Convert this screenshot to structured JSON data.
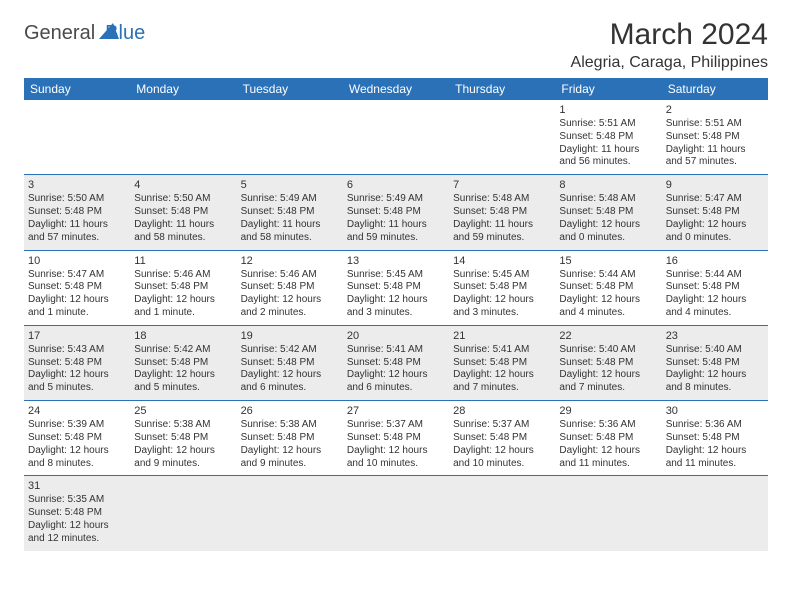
{
  "logo": {
    "text1": "General",
    "text2": "Blue"
  },
  "header": {
    "month": "March 2024",
    "location": "Alegria, Caraga, Philippines"
  },
  "dayNames": [
    "Sunday",
    "Monday",
    "Tuesday",
    "Wednesday",
    "Thursday",
    "Friday",
    "Saturday"
  ],
  "colors": {
    "headerBg": "#2a71b8",
    "headerText": "#ffffff",
    "altRowBg": "#ececec",
    "rowBorder": "#2a71b8",
    "textColor": "#333333",
    "logoGray": "#4a4a4a",
    "logoBlue": "#2a71b8"
  },
  "grid": {
    "startWeekday": 5,
    "daysInMonth": 31
  },
  "days": {
    "1": {
      "sunrise": "Sunrise: 5:51 AM",
      "sunset": "Sunset: 5:48 PM",
      "daylight": "Daylight: 11 hours and 56 minutes."
    },
    "2": {
      "sunrise": "Sunrise: 5:51 AM",
      "sunset": "Sunset: 5:48 PM",
      "daylight": "Daylight: 11 hours and 57 minutes."
    },
    "3": {
      "sunrise": "Sunrise: 5:50 AM",
      "sunset": "Sunset: 5:48 PM",
      "daylight": "Daylight: 11 hours and 57 minutes."
    },
    "4": {
      "sunrise": "Sunrise: 5:50 AM",
      "sunset": "Sunset: 5:48 PM",
      "daylight": "Daylight: 11 hours and 58 minutes."
    },
    "5": {
      "sunrise": "Sunrise: 5:49 AM",
      "sunset": "Sunset: 5:48 PM",
      "daylight": "Daylight: 11 hours and 58 minutes."
    },
    "6": {
      "sunrise": "Sunrise: 5:49 AM",
      "sunset": "Sunset: 5:48 PM",
      "daylight": "Daylight: 11 hours and 59 minutes."
    },
    "7": {
      "sunrise": "Sunrise: 5:48 AM",
      "sunset": "Sunset: 5:48 PM",
      "daylight": "Daylight: 11 hours and 59 minutes."
    },
    "8": {
      "sunrise": "Sunrise: 5:48 AM",
      "sunset": "Sunset: 5:48 PM",
      "daylight": "Daylight: 12 hours and 0 minutes."
    },
    "9": {
      "sunrise": "Sunrise: 5:47 AM",
      "sunset": "Sunset: 5:48 PM",
      "daylight": "Daylight: 12 hours and 0 minutes."
    },
    "10": {
      "sunrise": "Sunrise: 5:47 AM",
      "sunset": "Sunset: 5:48 PM",
      "daylight": "Daylight: 12 hours and 1 minute."
    },
    "11": {
      "sunrise": "Sunrise: 5:46 AM",
      "sunset": "Sunset: 5:48 PM",
      "daylight": "Daylight: 12 hours and 1 minute."
    },
    "12": {
      "sunrise": "Sunrise: 5:46 AM",
      "sunset": "Sunset: 5:48 PM",
      "daylight": "Daylight: 12 hours and 2 minutes."
    },
    "13": {
      "sunrise": "Sunrise: 5:45 AM",
      "sunset": "Sunset: 5:48 PM",
      "daylight": "Daylight: 12 hours and 3 minutes."
    },
    "14": {
      "sunrise": "Sunrise: 5:45 AM",
      "sunset": "Sunset: 5:48 PM",
      "daylight": "Daylight: 12 hours and 3 minutes."
    },
    "15": {
      "sunrise": "Sunrise: 5:44 AM",
      "sunset": "Sunset: 5:48 PM",
      "daylight": "Daylight: 12 hours and 4 minutes."
    },
    "16": {
      "sunrise": "Sunrise: 5:44 AM",
      "sunset": "Sunset: 5:48 PM",
      "daylight": "Daylight: 12 hours and 4 minutes."
    },
    "17": {
      "sunrise": "Sunrise: 5:43 AM",
      "sunset": "Sunset: 5:48 PM",
      "daylight": "Daylight: 12 hours and 5 minutes."
    },
    "18": {
      "sunrise": "Sunrise: 5:42 AM",
      "sunset": "Sunset: 5:48 PM",
      "daylight": "Daylight: 12 hours and 5 minutes."
    },
    "19": {
      "sunrise": "Sunrise: 5:42 AM",
      "sunset": "Sunset: 5:48 PM",
      "daylight": "Daylight: 12 hours and 6 minutes."
    },
    "20": {
      "sunrise": "Sunrise: 5:41 AM",
      "sunset": "Sunset: 5:48 PM",
      "daylight": "Daylight: 12 hours and 6 minutes."
    },
    "21": {
      "sunrise": "Sunrise: 5:41 AM",
      "sunset": "Sunset: 5:48 PM",
      "daylight": "Daylight: 12 hours and 7 minutes."
    },
    "22": {
      "sunrise": "Sunrise: 5:40 AM",
      "sunset": "Sunset: 5:48 PM",
      "daylight": "Daylight: 12 hours and 7 minutes."
    },
    "23": {
      "sunrise": "Sunrise: 5:40 AM",
      "sunset": "Sunset: 5:48 PM",
      "daylight": "Daylight: 12 hours and 8 minutes."
    },
    "24": {
      "sunrise": "Sunrise: 5:39 AM",
      "sunset": "Sunset: 5:48 PM",
      "daylight": "Daylight: 12 hours and 8 minutes."
    },
    "25": {
      "sunrise": "Sunrise: 5:38 AM",
      "sunset": "Sunset: 5:48 PM",
      "daylight": "Daylight: 12 hours and 9 minutes."
    },
    "26": {
      "sunrise": "Sunrise: 5:38 AM",
      "sunset": "Sunset: 5:48 PM",
      "daylight": "Daylight: 12 hours and 9 minutes."
    },
    "27": {
      "sunrise": "Sunrise: 5:37 AM",
      "sunset": "Sunset: 5:48 PM",
      "daylight": "Daylight: 12 hours and 10 minutes."
    },
    "28": {
      "sunrise": "Sunrise: 5:37 AM",
      "sunset": "Sunset: 5:48 PM",
      "daylight": "Daylight: 12 hours and 10 minutes."
    },
    "29": {
      "sunrise": "Sunrise: 5:36 AM",
      "sunset": "Sunset: 5:48 PM",
      "daylight": "Daylight: 12 hours and 11 minutes."
    },
    "30": {
      "sunrise": "Sunrise: 5:36 AM",
      "sunset": "Sunset: 5:48 PM",
      "daylight": "Daylight: 12 hours and 11 minutes."
    },
    "31": {
      "sunrise": "Sunrise: 5:35 AM",
      "sunset": "Sunset: 5:48 PM",
      "daylight": "Daylight: 12 hours and 12 minutes."
    }
  }
}
